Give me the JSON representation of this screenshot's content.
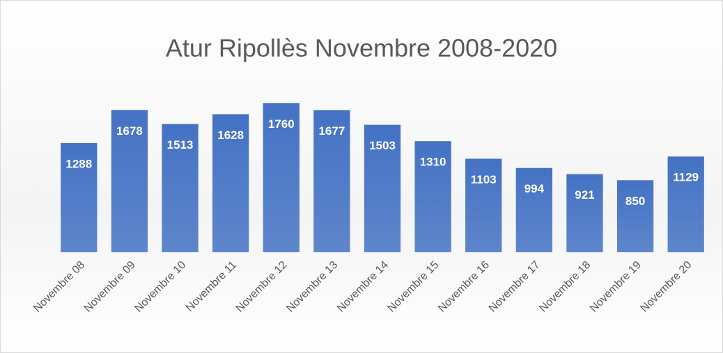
{
  "chart_data": {
    "type": "bar",
    "title": "Atur Ripollès Novembre 2008-2020",
    "categories": [
      "Novembre 08",
      "Novembre 09",
      "Novembre 10",
      "Novembre 11",
      "Novembre 12",
      "Novembre 13",
      "Novembre 14",
      "Novembre 15",
      "Novembre 16",
      "Novembre 17",
      "Novembre 18",
      "Novembre 19",
      "Novembre 20"
    ],
    "values": [
      1288,
      1678,
      1513,
      1628,
      1760,
      1677,
      1503,
      1310,
      1103,
      994,
      921,
      850,
      1129
    ],
    "color": "#4472c4",
    "ylim": [
      0,
      2000
    ]
  }
}
